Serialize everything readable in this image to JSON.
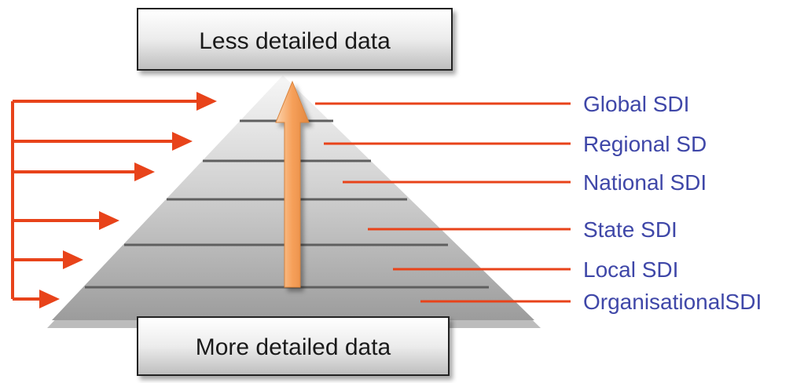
{
  "top_box": {
    "label": "Less detailed data"
  },
  "bottom_box": {
    "label": "More detailed data"
  },
  "levels": [
    {
      "label": "Global SDI"
    },
    {
      "label": "Regional SD"
    },
    {
      "label": "National SDI"
    },
    {
      "label": "State SDI"
    },
    {
      "label": "Local SDI"
    },
    {
      "label": "OrganisationalSDI"
    }
  ],
  "colors": {
    "leader_line": "#e8431a",
    "label_text": "#3f47a8",
    "central_arrow": "#f5a05c"
  }
}
